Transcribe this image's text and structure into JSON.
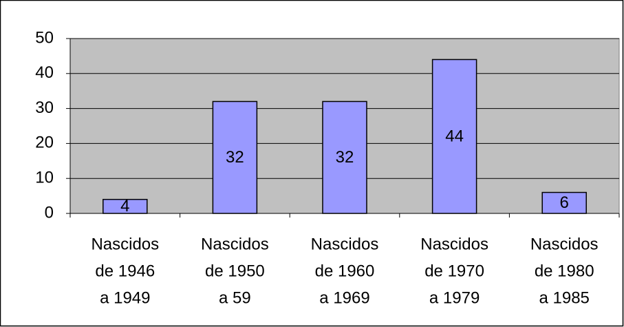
{
  "chart_data": {
    "type": "bar",
    "categories": [
      [
        "Nascidos",
        "de 1946",
        "a 1949"
      ],
      [
        "Nascidos",
        "de 1950",
        "a 59"
      ],
      [
        "Nascidos",
        "de 1960",
        "a 1969"
      ],
      [
        "Nascidos",
        "de 1970",
        "a 1979"
      ],
      [
        "Nascidos",
        "de 1980",
        "a 1985"
      ]
    ],
    "values": [
      4,
      32,
      32,
      44,
      6
    ],
    "color": "#9999ff",
    "ylim": [
      0,
      50
    ],
    "yticks": [
      0,
      10,
      20,
      30,
      40,
      50
    ],
    "grid": true,
    "data_labels": true
  }
}
